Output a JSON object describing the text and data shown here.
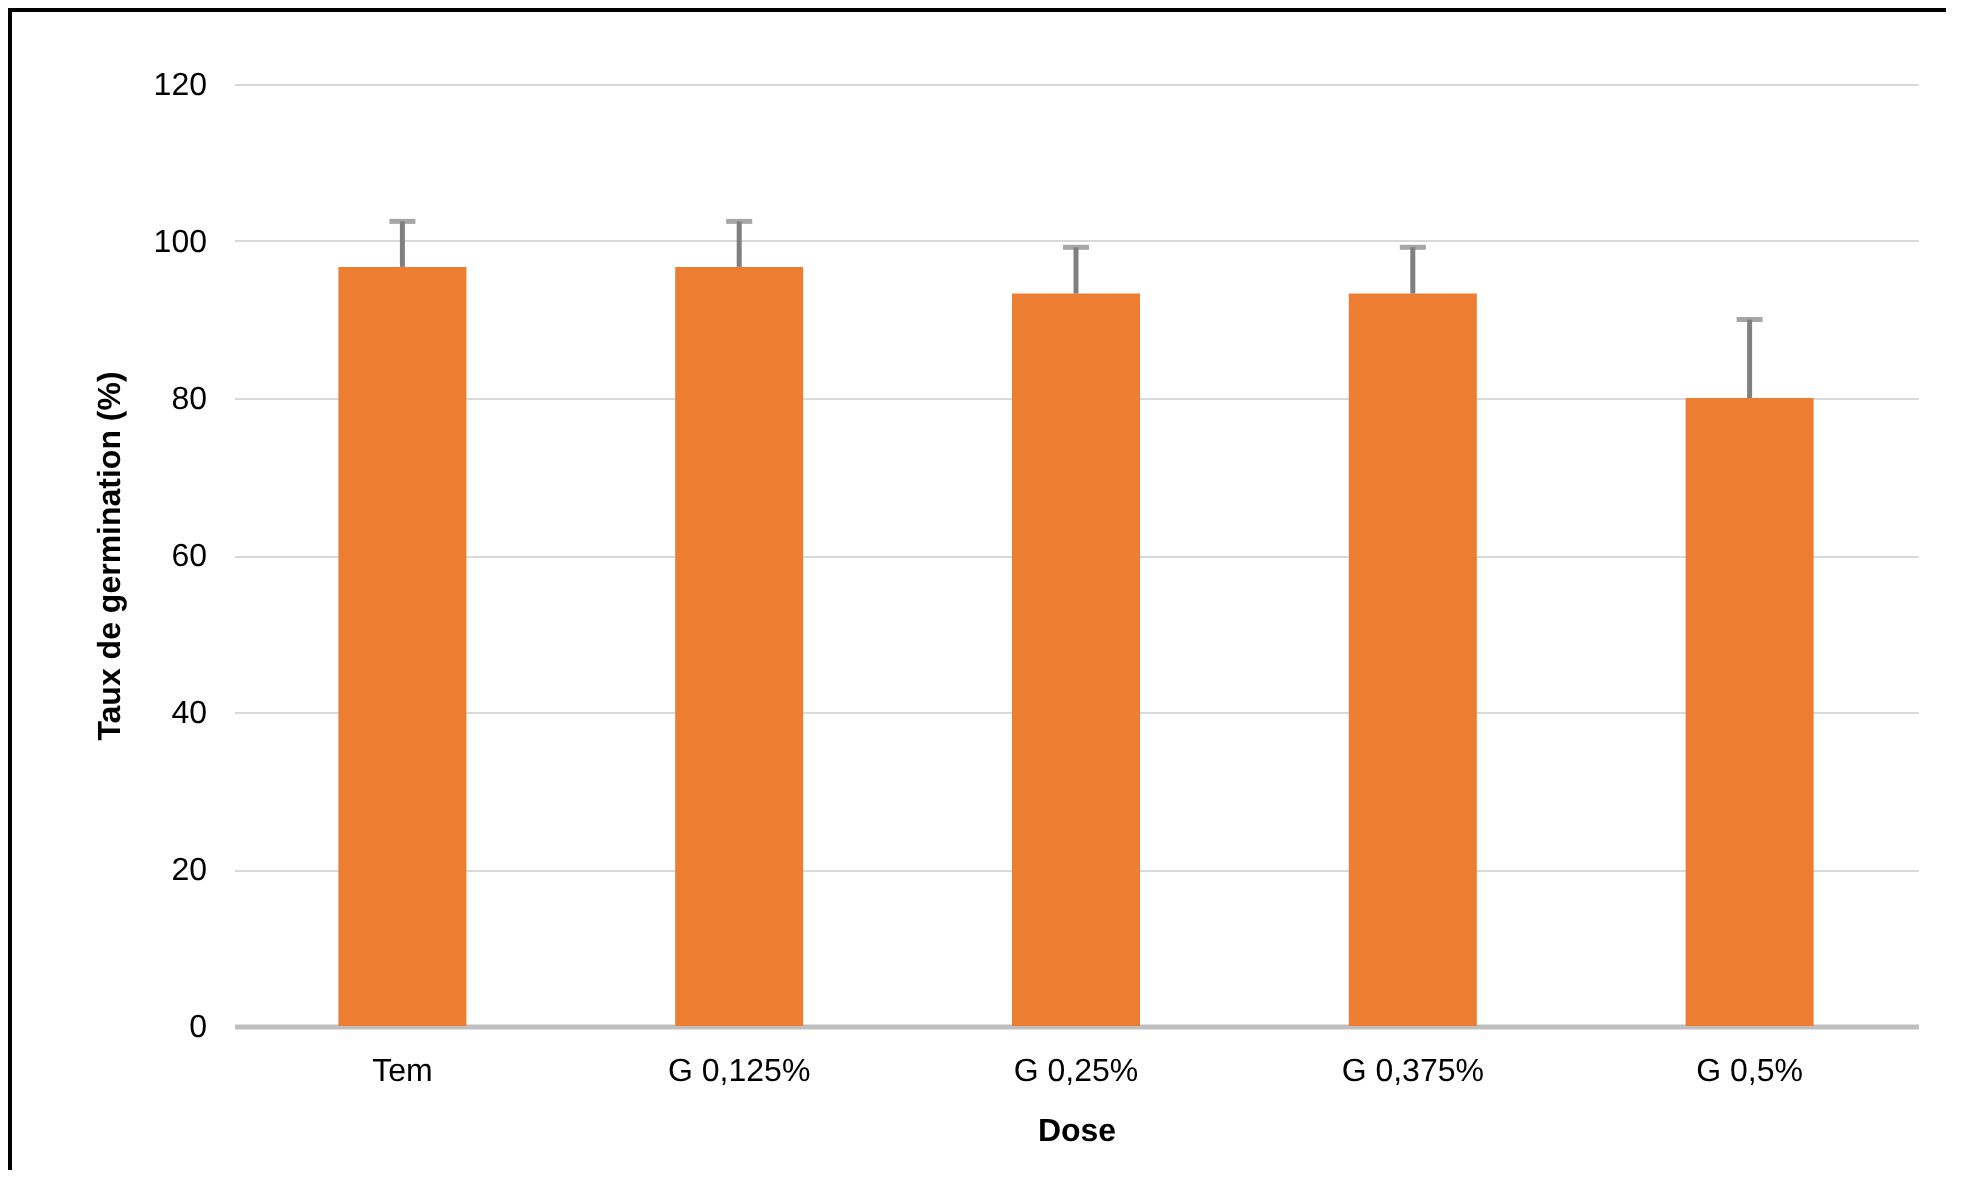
{
  "chart_data": {
    "type": "bar",
    "xlabel": "Dose",
    "ylabel": "Taux de germination (%)",
    "categories": [
      "Tem",
      "G 0,125%",
      "G 0,25%",
      "G 0,375%",
      "G 0,5%"
    ],
    "values": [
      96.7,
      96.7,
      93.3,
      93.3,
      80
    ],
    "errors": [
      [
        96.7,
        102.5
      ],
      [
        96.7,
        102.5
      ],
      [
        93.3,
        99.2
      ],
      [
        93.3,
        99.2
      ],
      [
        80,
        90
      ]
    ],
    "color": "#ed7d31",
    "ylim": [
      0,
      120
    ],
    "yticks": [
      0,
      20,
      40,
      60,
      80,
      100,
      120
    ],
    "grid": "y"
  }
}
